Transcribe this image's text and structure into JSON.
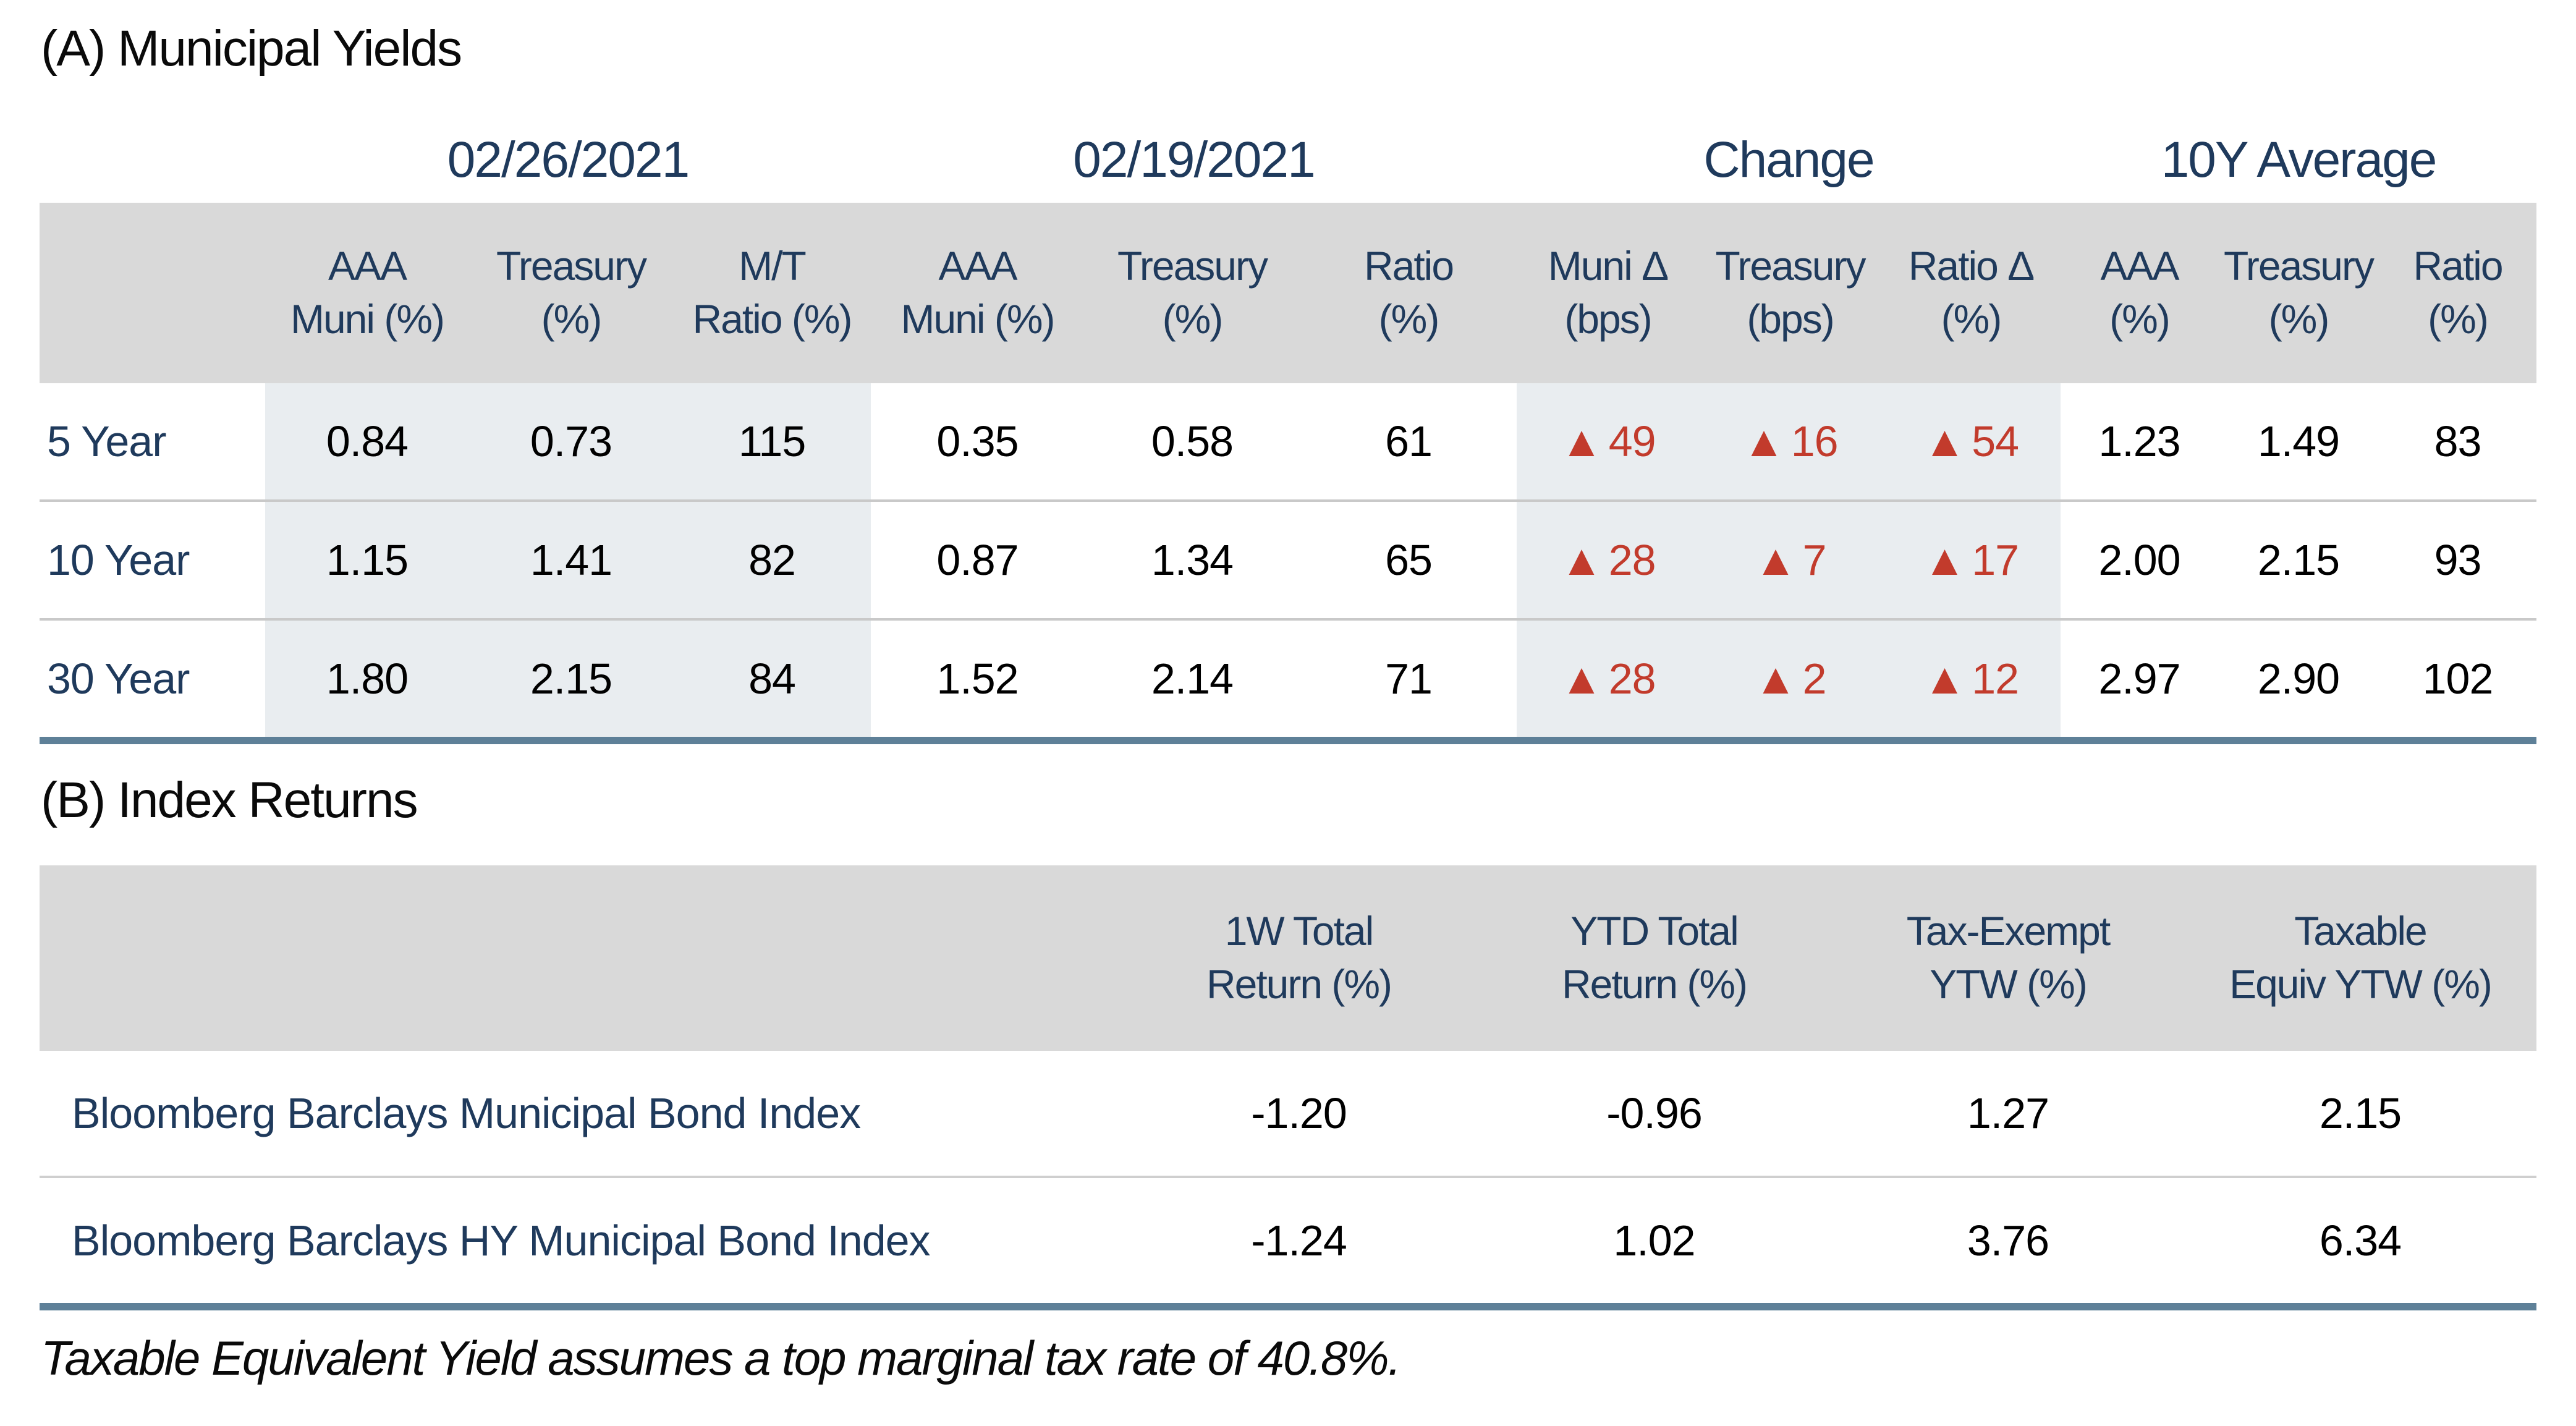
{
  "colors": {
    "navy_header_text": "#1f3a5c",
    "red_triangle": "#c23b2c",
    "header_band_gray": "#d9d9d9",
    "light_blue_band": "#e9edf0",
    "steel_bottom_rule": "#5e8098",
    "row_separator": "#c9c9c9"
  },
  "icons": {
    "up_triangle": "▲"
  },
  "section_a": {
    "title": "(A) Municipal Yields",
    "group_headers": [
      "02/26/2021",
      "02/19/2021",
      "Change",
      "10Y Average"
    ],
    "col_headers": [
      {
        "l1": "AAA",
        "l2": "Muni (%)"
      },
      {
        "l1": "Treasury",
        "l2": "(%)"
      },
      {
        "l1": "M/T",
        "l2": "Ratio (%)"
      },
      {
        "l1": "AAA",
        "l2": "Muni (%)"
      },
      {
        "l1": "Treasury",
        "l2": "(%)"
      },
      {
        "l1": "Ratio",
        "l2": "(%)"
      },
      {
        "l1": "Muni Δ",
        "l2": "(bps)"
      },
      {
        "l1": "Treasury",
        "l2": "(bps)"
      },
      {
        "l1": "Ratio Δ",
        "l2": "(%)"
      },
      {
        "l1": "AAA",
        "l2": "(%)"
      },
      {
        "l1": "Treasury",
        "l2": "(%)"
      },
      {
        "l1": "Ratio",
        "l2": "(%)"
      }
    ],
    "rows": [
      {
        "label": "5 Year",
        "d0226": [
          "0.84",
          "0.73",
          "115"
        ],
        "d0219": [
          "0.35",
          "0.58",
          "61"
        ],
        "change": [
          "49",
          "16",
          "54"
        ],
        "avg10y": [
          "1.23",
          "1.49",
          "83"
        ]
      },
      {
        "label": "10 Year",
        "d0226": [
          "1.15",
          "1.41",
          "82"
        ],
        "d0219": [
          "0.87",
          "1.34",
          "65"
        ],
        "change": [
          "28",
          "7",
          "17"
        ],
        "avg10y": [
          "2.00",
          "2.15",
          "93"
        ]
      },
      {
        "label": "30 Year",
        "d0226": [
          "1.80",
          "2.15",
          "84"
        ],
        "d0219": [
          "1.52",
          "2.14",
          "71"
        ],
        "change": [
          "28",
          "2",
          "12"
        ],
        "avg10y": [
          "2.97",
          "2.90",
          "102"
        ]
      }
    ]
  },
  "section_b": {
    "title": "(B) Index Returns",
    "col_headers": [
      {
        "l1": "1W Total",
        "l2": "Return (%)"
      },
      {
        "l1": "YTD Total",
        "l2": "Return (%)"
      },
      {
        "l1": "Tax-Exempt",
        "l2": "YTW (%)"
      },
      {
        "l1": "Taxable",
        "l2": "Equiv YTW (%)"
      }
    ],
    "rows": [
      {
        "label": "Bloomberg Barclays Municipal Bond Index",
        "values": [
          "-1.20",
          "-0.96",
          "1.27",
          "2.15"
        ]
      },
      {
        "label": "Bloomberg Barclays HY Municipal Bond Index",
        "values": [
          "-1.24",
          "1.02",
          "3.76",
          "6.34"
        ]
      }
    ]
  },
  "footnote": "Taxable Equivalent Yield assumes a top marginal tax rate of 40.8%.",
  "chart_data": [
    {
      "type": "table",
      "title": "(A) Municipal Yields",
      "column_groups": [
        "02/26/2021",
        "02/19/2021",
        "Change",
        "10Y Average"
      ],
      "columns": [
        "AAA Muni (%)",
        "Treasury (%)",
        "M/T Ratio (%)",
        "AAA Muni (%)",
        "Treasury (%)",
        "Ratio (%)",
        "Muni Δ (bps)",
        "Treasury (bps)",
        "Ratio Δ (%)",
        "AAA (%)",
        "Treasury (%)",
        "Ratio (%)"
      ],
      "rows": [
        {
          "label": "5 Year",
          "values": [
            0.84,
            0.73,
            115,
            0.35,
            0.58,
            61,
            49,
            16,
            54,
            1.23,
            1.49,
            83
          ]
        },
        {
          "label": "10 Year",
          "values": [
            1.15,
            1.41,
            82,
            0.87,
            1.34,
            65,
            28,
            7,
            17,
            2.0,
            2.15,
            93
          ]
        },
        {
          "label": "30 Year",
          "values": [
            1.8,
            2.15,
            84,
            1.52,
            2.14,
            71,
            28,
            2,
            12,
            2.97,
            2.9,
            102
          ]
        }
      ],
      "annotations": "Change columns shown with red upward triangles indicating increases"
    },
    {
      "type": "table",
      "title": "(B) Index Returns",
      "columns": [
        "1W Total Return (%)",
        "YTD Total Return (%)",
        "Tax-Exempt YTW (%)",
        "Taxable Equiv YTW (%)"
      ],
      "rows": [
        {
          "label": "Bloomberg Barclays Municipal Bond Index",
          "values": [
            -1.2,
            -0.96,
            1.27,
            2.15
          ]
        },
        {
          "label": "Bloomberg Barclays HY Municipal Bond Index",
          "values": [
            -1.24,
            1.02,
            3.76,
            6.34
          ]
        }
      ],
      "footnote": "Taxable Equivalent Yield assumes a top marginal tax rate of 40.8%."
    }
  ]
}
